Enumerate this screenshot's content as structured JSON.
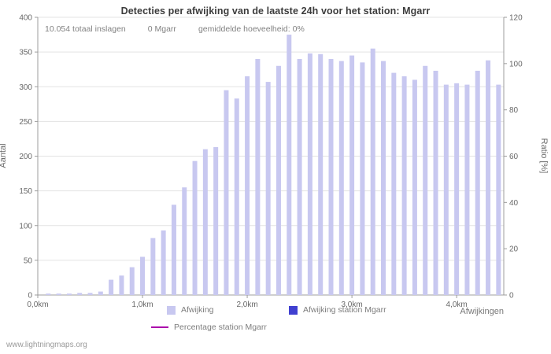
{
  "title": "Detecties per afwijking van de laatste 24h voor het station: Mgarr",
  "annotations": {
    "total": "10.054 totaal inslagen",
    "station": "0 Mgarr",
    "average": "gemiddelde hoeveelheid: 0%"
  },
  "watermark": "www.lightningmaps.org",
  "chart_data": {
    "type": "bar",
    "title": "Detecties per afwijking van de laatste 24h voor het station: Mgarr",
    "xlabel": "Afwijkingen",
    "ylabel_left": "Aantal",
    "ylabel_right": "Ratio [%]",
    "y_left_ticks": [
      0,
      50,
      100,
      150,
      200,
      250,
      300,
      350,
      400
    ],
    "y_right_ticks": [
      0,
      20,
      40,
      60,
      80,
      100,
      120
    ],
    "y_left_max": 400,
    "y_right_max": 120,
    "x_tick_labels": [
      "0,0km",
      "1,0km",
      "2,0km",
      "3,0km",
      "4,0km"
    ],
    "x_tick_positions_km": [
      0,
      1,
      2,
      3,
      4
    ],
    "x_max_km": 4.45,
    "grid": "horizontal",
    "legend_position": "bottom",
    "series": [
      {
        "name": "Afwijking",
        "color": "#c8c8f0",
        "kind": "bar",
        "x_km": [
          0.1,
          0.2,
          0.3,
          0.4,
          0.5,
          0.6,
          0.7,
          0.8,
          0.9,
          1.0,
          1.1,
          1.2,
          1.3,
          1.4,
          1.5,
          1.6,
          1.7,
          1.8,
          1.9,
          2.0,
          2.1,
          2.2,
          2.3,
          2.4,
          2.5,
          2.6,
          2.7,
          2.8,
          2.9,
          3.0,
          3.1,
          3.2,
          3.3,
          3.4,
          3.5,
          3.6,
          3.7,
          3.8,
          3.9,
          4.0,
          4.1,
          4.2,
          4.3,
          4.4
        ],
        "values": [
          2,
          2,
          2,
          3,
          3,
          5,
          22,
          28,
          40,
          55,
          82,
          93,
          130,
          155,
          193,
          210,
          213,
          295,
          283,
          315,
          340,
          307,
          330,
          375,
          340,
          348,
          347,
          340,
          337,
          345,
          335,
          355,
          337,
          320,
          315,
          310,
          330,
          323,
          303,
          305,
          303,
          323,
          338,
          303
        ]
      },
      {
        "name": "Afwijking station Mgarr",
        "color": "#4040d0",
        "kind": "bar",
        "x_km": [],
        "values": [],
        "all_zero": true
      },
      {
        "name": "Percentage station Mgarr",
        "color": "#aa00aa",
        "kind": "line",
        "x_km": [],
        "values": [],
        "all_zero": true
      }
    ],
    "legend": [
      {
        "label": "Afwijking",
        "swatch": "square",
        "color": "#c8c8f0"
      },
      {
        "label": "Afwijking station Mgarr",
        "swatch": "square",
        "color": "#4040d0"
      },
      {
        "label": "Percentage station Mgarr",
        "swatch": "line",
        "color": "#aa00aa"
      }
    ]
  }
}
